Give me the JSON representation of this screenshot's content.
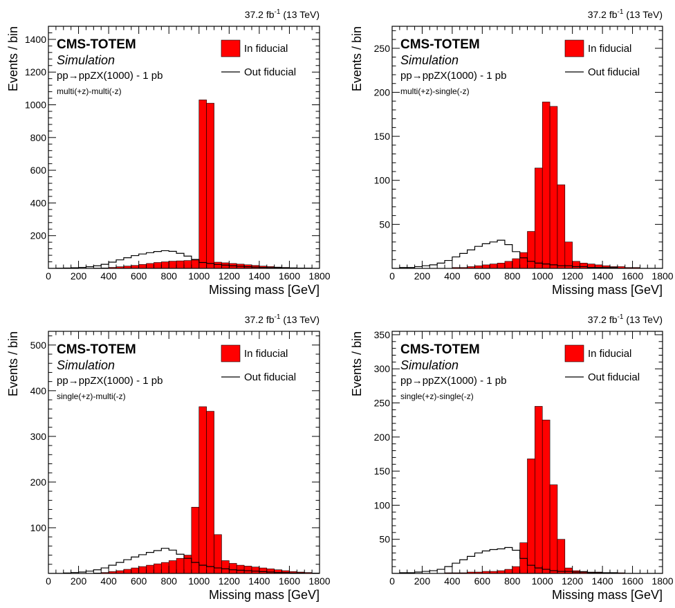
{
  "chart_data": [
    {
      "type": "bar",
      "lumi": {
        "text": "37.2 fb",
        "exp": "-1",
        "energy": " (13 TeV)"
      },
      "label_cms": "CMS-TOTEM",
      "label_sim": "Simulation",
      "label_process": {
        "pre": "pp",
        "arrow": "→",
        "post": "ppZX(1000) - 1 pb"
      },
      "label_config": "multi(+z)-multi(-z)",
      "xlabel": "Missing mass [GeV]",
      "ylabel": "Events / bin",
      "xlim": [
        0,
        1800
      ],
      "ylim": [
        0,
        1480
      ],
      "xticks": [
        0,
        200,
        400,
        600,
        800,
        1000,
        1200,
        1400,
        1600,
        1800
      ],
      "yticks": [
        200,
        400,
        600,
        800,
        1000,
        1200,
        1400
      ],
      "bin_edges": [
        0,
        50,
        100,
        150,
        200,
        250,
        300,
        350,
        400,
        450,
        500,
        550,
        600,
        650,
        700,
        750,
        800,
        850,
        900,
        950,
        1000,
        1050,
        1100,
        1150,
        1200,
        1250,
        1300,
        1350,
        1400,
        1450,
        1500,
        1550,
        1600,
        1650,
        1700,
        1750,
        1800
      ],
      "series": [
        {
          "name": "In fiducial",
          "style": "filled",
          "color": "#ff0000",
          "values": [
            0,
            0,
            0,
            0,
            0,
            0,
            2,
            3,
            6,
            10,
            14,
            18,
            24,
            30,
            36,
            40,
            44,
            46,
            48,
            56,
            1030,
            1010,
            38,
            34,
            30,
            26,
            22,
            18,
            14,
            11,
            8,
            6,
            4,
            3,
            2,
            1
          ]
        },
        {
          "name": "Out fiducial",
          "style": "line",
          "color": "#000000",
          "values": [
            0,
            1,
            2,
            4,
            6,
            10,
            16,
            25,
            38,
            52,
            65,
            78,
            88,
            96,
            103,
            108,
            104,
            92,
            75,
            52,
            36,
            30,
            24,
            20,
            16,
            13,
            10,
            8,
            6,
            5,
            4,
            3,
            2,
            1,
            1,
            0
          ]
        }
      ]
    },
    {
      "type": "bar",
      "lumi": {
        "text": "37.2 fb",
        "exp": "-1",
        "energy": " (13 TeV)"
      },
      "label_cms": "CMS-TOTEM",
      "label_sim": "Simulation",
      "label_process": {
        "pre": "pp",
        "arrow": "→",
        "post": "ppZX(1000) - 1 pb"
      },
      "label_config": "multi(+z)-single(-z)",
      "xlabel": "Missing mass [GeV]",
      "ylabel": "Events / bin",
      "xlim": [
        0,
        1800
      ],
      "ylim": [
        0,
        275
      ],
      "xticks": [
        0,
        200,
        400,
        600,
        800,
        1000,
        1200,
        1400,
        1600,
        1800
      ],
      "yticks": [
        50,
        100,
        150,
        200,
        250
      ],
      "bin_edges": [
        0,
        50,
        100,
        150,
        200,
        250,
        300,
        350,
        400,
        450,
        500,
        550,
        600,
        650,
        700,
        750,
        800,
        850,
        900,
        950,
        1000,
        1050,
        1100,
        1150,
        1200,
        1250,
        1300,
        1350,
        1400,
        1450,
        1500,
        1550,
        1600,
        1650,
        1700,
        1750,
        1800
      ],
      "series": [
        {
          "name": "In fiducial",
          "style": "filled",
          "color": "#ff0000",
          "values": [
            0,
            0,
            0,
            0,
            0,
            0,
            0,
            0,
            1,
            1,
            2,
            3,
            4,
            5,
            6,
            8,
            11,
            18,
            42,
            114,
            189,
            184,
            95,
            30,
            8,
            6,
            5,
            4,
            3,
            2,
            2,
            1,
            1,
            0,
            0,
            0
          ]
        },
        {
          "name": "Out fiducial",
          "style": "line",
          "color": "#000000",
          "values": [
            0,
            1,
            1,
            2,
            3,
            4,
            6,
            9,
            13,
            17,
            21,
            25,
            28,
            30,
            32,
            27,
            19,
            12,
            8,
            6,
            5,
            4,
            3,
            3,
            2,
            2,
            1,
            1,
            1,
            1,
            0,
            0,
            0,
            0,
            0,
            0
          ]
        }
      ]
    },
    {
      "type": "bar",
      "lumi": {
        "text": "37.2 fb",
        "exp": "-1",
        "energy": " (13 TeV)"
      },
      "label_cms": "CMS-TOTEM",
      "label_sim": "Simulation",
      "label_process": {
        "pre": "pp",
        "arrow": "→",
        "post": "ppZX(1000) - 1 pb"
      },
      "label_config": "single(+z)-multi(-z)",
      "xlabel": "Missing mass [GeV]",
      "ylabel": "Events / bin",
      "xlim": [
        0,
        1800
      ],
      "ylim": [
        0,
        530
      ],
      "xticks": [
        0,
        200,
        400,
        600,
        800,
        1000,
        1200,
        1400,
        1600,
        1800
      ],
      "yticks": [
        100,
        200,
        300,
        400,
        500
      ],
      "bin_edges": [
        0,
        50,
        100,
        150,
        200,
        250,
        300,
        350,
        400,
        450,
        500,
        550,
        600,
        650,
        700,
        750,
        800,
        850,
        900,
        950,
        1000,
        1050,
        1100,
        1150,
        1200,
        1250,
        1300,
        1350,
        1400,
        1450,
        1500,
        1550,
        1600,
        1650,
        1700,
        1750,
        1800
      ],
      "series": [
        {
          "name": "In fiducial",
          "style": "filled",
          "color": "#ff0000",
          "values": [
            0,
            0,
            0,
            0,
            0,
            0,
            1,
            2,
            4,
            6,
            9,
            12,
            15,
            18,
            21,
            24,
            28,
            33,
            40,
            145,
            365,
            355,
            85,
            28,
            22,
            18,
            16,
            14,
            12,
            10,
            8,
            6,
            4,
            3,
            2,
            1
          ]
        },
        {
          "name": "Out fiducial",
          "style": "line",
          "color": "#000000",
          "values": [
            0,
            0,
            1,
            2,
            3,
            5,
            8,
            12,
            18,
            24,
            30,
            36,
            41,
            46,
            50,
            55,
            51,
            42,
            33,
            24,
            18,
            15,
            12,
            10,
            8,
            7,
            6,
            5,
            4,
            3,
            2,
            2,
            1,
            1,
            0,
            0
          ]
        }
      ]
    },
    {
      "type": "bar",
      "lumi": {
        "text": "37.2 fb",
        "exp": "-1",
        "energy": " (13 TeV)"
      },
      "label_cms": "CMS-TOTEM",
      "label_sim": "Simulation",
      "label_process": {
        "pre": "pp",
        "arrow": "→",
        "post": "ppZX(1000) - 1 pb"
      },
      "label_config": "single(+z)-single(-z)",
      "xlabel": "Missing mass [GeV]",
      "ylabel": "Events / bin",
      "xlim": [
        0,
        1800
      ],
      "ylim": [
        0,
        355
      ],
      "xticks": [
        0,
        200,
        400,
        600,
        800,
        1000,
        1200,
        1400,
        1600,
        1800
      ],
      "yticks": [
        50,
        100,
        150,
        200,
        250,
        300,
        350
      ],
      "bin_edges": [
        0,
        50,
        100,
        150,
        200,
        250,
        300,
        350,
        400,
        450,
        500,
        550,
        600,
        650,
        700,
        750,
        800,
        850,
        900,
        950,
        1000,
        1050,
        1100,
        1150,
        1200,
        1250,
        1300,
        1350,
        1400,
        1450,
        1500,
        1550,
        1600,
        1650,
        1700,
        1750,
        1800
      ],
      "series": [
        {
          "name": "In fiducial",
          "style": "filled",
          "color": "#ff0000",
          "values": [
            0,
            0,
            0,
            0,
            0,
            0,
            0,
            1,
            1,
            1,
            2,
            2,
            3,
            3,
            4,
            6,
            10,
            45,
            168,
            245,
            225,
            130,
            50,
            8,
            4,
            3,
            2,
            2,
            1,
            1,
            1,
            0,
            0,
            0,
            0,
            0
          ]
        },
        {
          "name": "Out fiducial",
          "style": "line",
          "color": "#000000",
          "values": [
            0,
            1,
            1,
            2,
            3,
            4,
            6,
            10,
            15,
            20,
            25,
            30,
            33,
            35,
            36,
            38,
            34,
            22,
            12,
            8,
            6,
            4,
            3,
            3,
            2,
            2,
            1,
            1,
            1,
            1,
            0,
            0,
            0,
            0,
            0,
            0
          ]
        }
      ]
    }
  ]
}
